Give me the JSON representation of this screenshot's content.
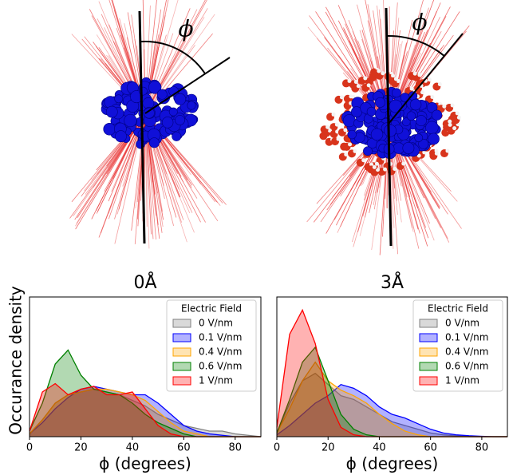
{
  "diagram": {
    "angle_labels": [
      "ϕ",
      "ϕ"
    ]
  },
  "chart_data": [
    {
      "type": "area",
      "title": "0Å",
      "xlabel": "ϕ (degrees)",
      "ylabel": "Occurance density",
      "legend_title": "Electric Field",
      "legend": "upper right",
      "xlim": [
        0,
        90
      ],
      "xticks": [
        0,
        20,
        40,
        60,
        80
      ],
      "ylim": [
        0,
        0.05
      ],
      "x": [
        0,
        5,
        10,
        15,
        20,
        25,
        30,
        35,
        40,
        45,
        50,
        55,
        60,
        65,
        70,
        75,
        80,
        85,
        90
      ],
      "series": [
        {
          "name": "0 V/nm",
          "color": "#808080",
          "values": [
            0.001,
            0.006,
            0.012,
            0.015,
            0.016,
            0.017,
            0.016,
            0.015,
            0.013,
            0.011,
            0.008,
            0.006,
            0.004,
            0.003,
            0.002,
            0.002,
            0.001,
            0.0005,
            0
          ]
        },
        {
          "name": "0.1 V/nm",
          "color": "#0000ff",
          "values": [
            0.001,
            0.005,
            0.01,
            0.014,
            0.017,
            0.018,
            0.017,
            0.016,
            0.015,
            0.015,
            0.012,
            0.008,
            0.004,
            0.002,
            0.001,
            0.0005,
            0,
            0,
            0
          ]
        },
        {
          "name": "0.4 V/nm",
          "color": "#ffa500",
          "values": [
            0.001,
            0.006,
            0.012,
            0.015,
            0.016,
            0.017,
            0.017,
            0.016,
            0.015,
            0.013,
            0.009,
            0.005,
            0.002,
            0.001,
            0,
            0,
            0,
            0,
            0
          ]
        },
        {
          "name": "0.6 V/nm",
          "color": "#008000",
          "values": [
            0.002,
            0.012,
            0.026,
            0.031,
            0.022,
            0.017,
            0.016,
            0.015,
            0.012,
            0.008,
            0.005,
            0.003,
            0.001,
            0,
            0,
            0,
            0,
            0,
            0
          ]
        },
        {
          "name": "1 V/nm",
          "color": "#ff0000",
          "values": [
            0.002,
            0.016,
            0.019,
            0.015,
            0.017,
            0.018,
            0.015,
            0.015,
            0.016,
            0.01,
            0.004,
            0.001,
            0,
            0,
            0,
            0,
            0,
            0,
            0
          ]
        }
      ]
    },
    {
      "type": "area",
      "title": "3Å",
      "xlabel": "ϕ (degrees)",
      "legend_title": "Electric Field",
      "legend": "upper right",
      "xlim": [
        0,
        90
      ],
      "xticks": [
        0,
        20,
        40,
        60,
        80
      ],
      "ylim": [
        0,
        0.075
      ],
      "x": [
        0,
        5,
        10,
        15,
        20,
        25,
        30,
        35,
        40,
        45,
        50,
        55,
        60,
        65,
        70,
        75,
        80,
        85,
        90
      ],
      "series": [
        {
          "name": "0 V/nm",
          "color": "#808080",
          "values": [
            0.002,
            0.018,
            0.03,
            0.034,
            0.028,
            0.022,
            0.02,
            0.016,
            0.012,
            0.008,
            0.006,
            0.004,
            0.002,
            0.001,
            0.0005,
            0,
            0,
            0,
            0
          ]
        },
        {
          "name": "0.1 V/nm",
          "color": "#0000ff",
          "values": [
            0.001,
            0.006,
            0.012,
            0.018,
            0.022,
            0.028,
            0.026,
            0.022,
            0.016,
            0.012,
            0.01,
            0.007,
            0.004,
            0.002,
            0.001,
            0.0005,
            0.0002,
            0,
            0
          ]
        },
        {
          "name": "0.4 V/nm",
          "color": "#ffa500",
          "values": [
            0.002,
            0.015,
            0.03,
            0.04,
            0.03,
            0.025,
            0.022,
            0.018,
            0.012,
            0.007,
            0.003,
            0.001,
            0,
            0,
            0,
            0,
            0,
            0,
            0
          ]
        },
        {
          "name": "0.6 V/nm",
          "color": "#008000",
          "values": [
            0.002,
            0.02,
            0.04,
            0.048,
            0.03,
            0.012,
            0.004,
            0.001,
            0,
            0,
            0,
            0,
            0,
            0,
            0,
            0,
            0,
            0,
            0
          ]
        },
        {
          "name": "1 V/nm",
          "color": "#ff0000",
          "values": [
            0.005,
            0.055,
            0.068,
            0.05,
            0.02,
            0.005,
            0.001,
            0,
            0,
            0,
            0,
            0,
            0,
            0,
            0,
            0,
            0,
            0,
            0
          ]
        }
      ]
    }
  ]
}
